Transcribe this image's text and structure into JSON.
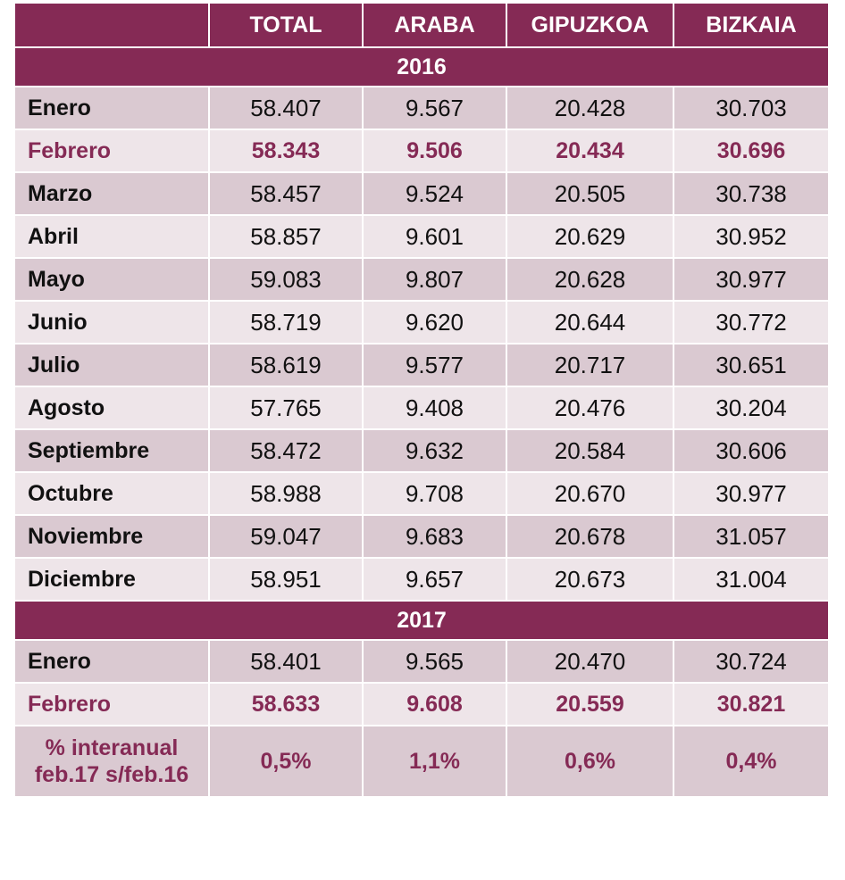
{
  "headers": [
    "",
    "TOTAL",
    "ARABA",
    "GIPUZKOA",
    "BIZKAIA"
  ],
  "sections": [
    {
      "year": "2016",
      "rows": [
        {
          "label": "Enero",
          "values": [
            "58.407",
            "9.567",
            "20.428",
            "30.703"
          ],
          "highlight": false
        },
        {
          "label": "Febrero",
          "values": [
            "58.343",
            "9.506",
            "20.434",
            "30.696"
          ],
          "highlight": true
        },
        {
          "label": "Marzo",
          "values": [
            "58.457",
            "9.524",
            "20.505",
            "30.738"
          ],
          "highlight": false
        },
        {
          "label": "Abril",
          "values": [
            "58.857",
            "9.601",
            "20.629",
            "30.952"
          ],
          "highlight": false
        },
        {
          "label": "Mayo",
          "values": [
            "59.083",
            "9.807",
            "20.628",
            "30.977"
          ],
          "highlight": false
        },
        {
          "label": "Junio",
          "values": [
            "58.719",
            "9.620",
            "20.644",
            "30.772"
          ],
          "highlight": false
        },
        {
          "label": "Julio",
          "values": [
            "58.619",
            "9.577",
            "20.717",
            "30.651"
          ],
          "highlight": false
        },
        {
          "label": "Agosto",
          "values": [
            "57.765",
            "9.408",
            "20.476",
            "30.204"
          ],
          "highlight": false
        },
        {
          "label": "Septiembre",
          "values": [
            "58.472",
            "9.632",
            "20.584",
            "30.606"
          ],
          "highlight": false
        },
        {
          "label": "Octubre",
          "values": [
            "58.988",
            "9.708",
            "20.670",
            "30.977"
          ],
          "highlight": false
        },
        {
          "label": "Noviembre",
          "values": [
            "59.047",
            "9.683",
            "20.678",
            "31.057"
          ],
          "highlight": false
        },
        {
          "label": "Diciembre",
          "values": [
            "58.951",
            "9.657",
            "20.673",
            "31.004"
          ],
          "highlight": false
        }
      ]
    },
    {
      "year": "2017",
      "rows": [
        {
          "label": "Enero",
          "values": [
            "58.401",
            "9.565",
            "20.470",
            "30.724"
          ],
          "highlight": false
        },
        {
          "label": "Febrero",
          "values": [
            "58.633",
            "9.608",
            "20.559",
            "30.821"
          ],
          "highlight": true
        }
      ]
    }
  ],
  "interannual": {
    "label_line1": "% interanual",
    "label_line2": "feb.17 s/feb.16",
    "values": [
      "0,5%",
      "1,1%",
      "0,6%",
      "0,4%"
    ]
  },
  "colors": {
    "header": "#852a55",
    "row_shade": "#dac9d1",
    "row_light": "#eee5e9",
    "highlight_text": "#852a55"
  }
}
